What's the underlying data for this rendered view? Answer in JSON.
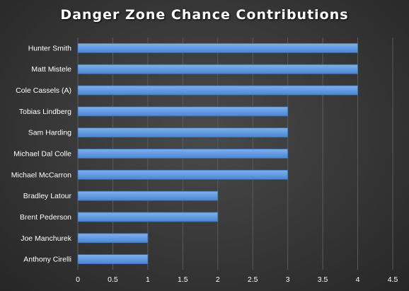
{
  "chart_data": {
    "type": "bar",
    "orientation": "horizontal",
    "title": "Danger Zone Chance Contributions",
    "xlabel": "",
    "ylabel": "",
    "categories": [
      "Hunter Smith",
      "Matt Mistele",
      "Cole Cassels (A)",
      "Tobias Lindberg",
      "Sam Harding",
      "Michael Dal Colle",
      "Michael McCarron",
      "Bradley Latour",
      "Brent Pederson",
      "Joe Manchurek",
      "Anthony Cirelli"
    ],
    "values": [
      4,
      4,
      4,
      3,
      3,
      3,
      3,
      2,
      2,
      1,
      1
    ],
    "xlim": [
      0,
      4.5
    ],
    "xticks": [
      "0",
      "0.5",
      "1",
      "1.5",
      "2",
      "2.5",
      "3",
      "3.5",
      "4",
      "4.5"
    ],
    "grid": true,
    "legend": "none",
    "colors": {
      "bar_top": "#7fb0ec",
      "bar_bottom": "#4a86d4",
      "bar_edge": "#3b6fb6"
    }
  }
}
